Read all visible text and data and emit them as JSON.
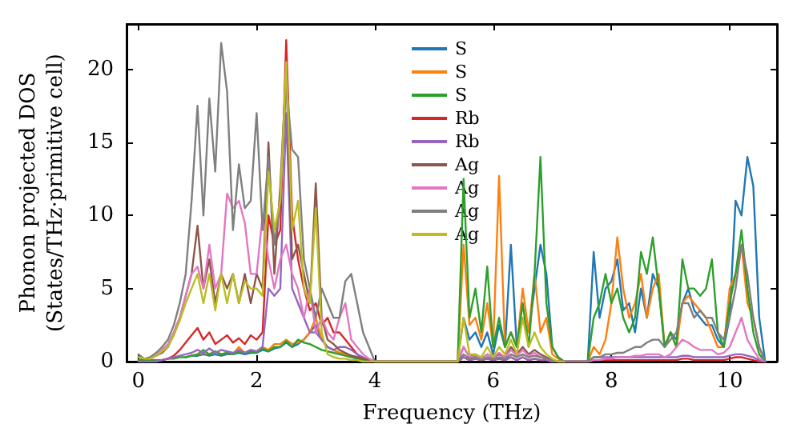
{
  "chart_data": {
    "type": "line",
    "xlabel": "Frequency (THz)",
    "ylabel": "Phonon projected DOS\n(States/THz·primitive cell)",
    "x": [
      0,
      0.1,
      0.2,
      0.3,
      0.4,
      0.5,
      0.6,
      0.7,
      0.8,
      0.9,
      1.0,
      1.1,
      1.2,
      1.3,
      1.4,
      1.5,
      1.6,
      1.7,
      1.8,
      1.9,
      2.0,
      2.1,
      2.2,
      2.3,
      2.4,
      2.5,
      2.6,
      2.7,
      2.8,
      2.9,
      3.0,
      3.1,
      3.2,
      3.3,
      3.4,
      3.5,
      3.6,
      3.7,
      3.8,
      3.9,
      4.0,
      5.4,
      5.5,
      5.6,
      5.7,
      5.8,
      5.9,
      6.0,
      6.1,
      6.2,
      6.3,
      6.4,
      6.5,
      6.6,
      6.7,
      6.8,
      6.9,
      7.0,
      7.1,
      7.2,
      7.6,
      7.7,
      7.8,
      7.9,
      8.0,
      8.1,
      8.2,
      8.3,
      8.4,
      8.5,
      8.6,
      8.7,
      8.8,
      8.9,
      9.0,
      9.1,
      9.2,
      9.3,
      9.4,
      9.5,
      9.6,
      9.7,
      9.8,
      9.9,
      10.0,
      10.1,
      10.2,
      10.3,
      10.4,
      10.5,
      10.6
    ],
    "series": [
      {
        "name": "S",
        "color": "#1f77b4",
        "values": [
          null,
          null,
          null,
          null,
          null,
          null,
          null,
          null,
          0.3,
          0.4,
          0.4,
          0.5,
          0.4,
          0.5,
          0.4,
          0.5,
          0.5,
          0.6,
          0.5,
          0.6,
          0.6,
          0.8,
          0.7,
          0.9,
          1,
          1.3,
          1,
          1.2,
          1.5,
          2,
          2.5,
          1.5,
          1,
          0.8,
          0.6,
          0.5,
          0.4,
          0.3,
          0.2,
          0.1,
          0,
          0,
          3,
          1.5,
          2,
          1,
          2,
          0.5,
          2.5,
          1,
          8,
          1,
          3,
          2,
          5,
          8,
          6,
          1,
          0.3,
          0,
          0,
          7.5,
          3,
          5,
          5.5,
          7,
          3.5,
          4,
          2,
          5,
          3,
          6,
          5,
          1,
          2,
          1.5,
          4,
          5,
          3.5,
          3,
          2.5,
          2.5,
          1.5,
          1,
          3,
          11,
          10,
          14,
          12,
          3,
          0
        ]
      },
      {
        "name": "S",
        "color": "#ff7f0e",
        "values": [
          null,
          null,
          null,
          null,
          null,
          null,
          null,
          null,
          null,
          0.4,
          0.5,
          0.6,
          0.5,
          0.7,
          0.5,
          0.6,
          0.5,
          1,
          0.6,
          0.8,
          0.7,
          1,
          0.8,
          1.2,
          1.2,
          1.5,
          1.2,
          1.3,
          1.5,
          2,
          3,
          1.5,
          1,
          0.8,
          0.6,
          0.5,
          0.4,
          0.3,
          0.2,
          0.1,
          0,
          0,
          8,
          2.5,
          3,
          1.5,
          4,
          1,
          12.7,
          1,
          2,
          1,
          5,
          2,
          6,
          2,
          3,
          0.5,
          0.2,
          0,
          0,
          1,
          0.5,
          1.5,
          4,
          8.5,
          5,
          3,
          4,
          6,
          3,
          5,
          6,
          1,
          2,
          1,
          4,
          4.5,
          4,
          3.5,
          3,
          2,
          1,
          1,
          5,
          6,
          8,
          4,
          3,
          1,
          0
        ]
      },
      {
        "name": "S",
        "color": "#2ca02c",
        "values": [
          0.1,
          0.1,
          0.1,
          0.1,
          0.1,
          0.2,
          0.2,
          0.3,
          0.3,
          0.4,
          0.5,
          0.8,
          0.5,
          0.7,
          0.5,
          0.6,
          0.5,
          0.7,
          0.6,
          0.7,
          0.6,
          0.9,
          0.7,
          1,
          1,
          1.4,
          1,
          1.5,
          1.3,
          1.2,
          1,
          0.8,
          0.7,
          0.6,
          0.5,
          0.4,
          0.3,
          0.2,
          0.1,
          0.1,
          0,
          0,
          12.5,
          3,
          5,
          2,
          6.5,
          1,
          3,
          1,
          2,
          1,
          4,
          1,
          6,
          14,
          4,
          1,
          0.3,
          0,
          0,
          3,
          4,
          6,
          4,
          5,
          3,
          2,
          3,
          7.5,
          6,
          8.5,
          5,
          1,
          2,
          1,
          7,
          5,
          5,
          4.5,
          5,
          7,
          2,
          1,
          4,
          6,
          9,
          5,
          2,
          0.5,
          0
        ]
      },
      {
        "name": "Rb",
        "color": "#d62728",
        "values": [
          null,
          null,
          null,
          null,
          0.1,
          0.2,
          0.4,
          0.8,
          1.3,
          1.8,
          2.3,
          1.5,
          2,
          1.2,
          1.5,
          1.8,
          1.3,
          1.6,
          1.2,
          1.8,
          1.5,
          2,
          10,
          8,
          9,
          22,
          10,
          7,
          5,
          3.5,
          4,
          2.5,
          3,
          2,
          2,
          1.5,
          1,
          0.5,
          0.2,
          0.1,
          0,
          0,
          0.3,
          0.1,
          0.2,
          0.1,
          0.2,
          0.1,
          0.2,
          0.1,
          0.3,
          0.1,
          0.3,
          0.1,
          0.2,
          0.1,
          0.1,
          0,
          0,
          0,
          0,
          0.1,
          0.1,
          0.1,
          0.1,
          0.1,
          0.1,
          0.1,
          0.1,
          0.1,
          0.1,
          0.1,
          0.1,
          0.1,
          0.1,
          0.1,
          0.2,
          0.2,
          0.1,
          0.1,
          0.1,
          0.1,
          0.1,
          0.1,
          0.2,
          0.3,
          0.3,
          0.2,
          0.1,
          0,
          0
        ]
      },
      {
        "name": "Rb",
        "color": "#9467bd",
        "values": [
          0,
          0,
          0,
          0,
          0.1,
          0.2,
          0.3,
          0.4,
          0.5,
          0.6,
          0.8,
          0.6,
          0.9,
          0.6,
          0.8,
          0.7,
          0.6,
          0.8,
          0.6,
          0.8,
          0.7,
          1,
          5,
          4.5,
          5,
          17,
          5,
          4,
          3,
          2,
          2,
          1.5,
          1,
          0.8,
          1,
          1,
          0.8,
          0.5,
          0.3,
          0.1,
          0,
          0,
          0.3,
          0.1,
          0.2,
          0.1,
          0.2,
          0.1,
          0.2,
          0.1,
          0.3,
          0.1,
          0.3,
          0.1,
          0.2,
          0.1,
          0.1,
          0,
          0,
          0,
          0,
          0.3,
          0.3,
          0.3,
          0.3,
          0.3,
          0.3,
          0.3,
          0.3,
          0.3,
          0.3,
          0.3,
          0.3,
          0.3,
          0.3,
          0.3,
          0.4,
          0.4,
          0.3,
          0.3,
          0.3,
          0.3,
          0.3,
          0.3,
          0.4,
          0.5,
          0.5,
          0.4,
          0.3,
          0.1,
          0
        ]
      },
      {
        "name": "Ag",
        "color": "#8c564b",
        "values": [
          0.3,
          0.2,
          0.2,
          0.4,
          0.6,
          1,
          2,
          3,
          4.5,
          6,
          9.3,
          5,
          7,
          4,
          6,
          5,
          6,
          4,
          6,
          4,
          6,
          5,
          15,
          6,
          12,
          20,
          7,
          8,
          6,
          4,
          12.2,
          3,
          1.5,
          1.2,
          0.8,
          0.6,
          0.4,
          0.3,
          0.2,
          0.1,
          0,
          0,
          1,
          0.3,
          0.5,
          0.2,
          0.5,
          0.3,
          0.5,
          0.3,
          1,
          0.5,
          1,
          0.5,
          0.8,
          0.5,
          0.3,
          0.1,
          0,
          0,
          null,
          null,
          null,
          null,
          null,
          null,
          null,
          null,
          null,
          null,
          null,
          null,
          null,
          null,
          null,
          null,
          null,
          null,
          null,
          null,
          null,
          null,
          null,
          null,
          null,
          null,
          null,
          null,
          null,
          null,
          null
        ]
      },
      {
        "name": "Ag",
        "color": "#e377c2",
        "values": [
          null,
          null,
          0.2,
          0.4,
          0.8,
          1.2,
          2,
          3,
          4.5,
          6,
          6.5,
          5,
          8,
          5,
          6,
          11.5,
          10.5,
          11,
          9.5,
          6,
          6,
          10,
          7,
          5,
          7,
          8,
          6,
          5,
          3,
          5,
          2,
          3,
          2,
          1.5,
          3,
          4,
          1.5,
          1,
          0.5,
          0.2,
          0,
          0,
          1,
          0.3,
          0.4,
          0.2,
          0.5,
          0.3,
          0.6,
          0.3,
          0.8,
          0.4,
          0.8,
          0.4,
          0.6,
          0.3,
          0.2,
          0.1,
          0,
          0,
          0,
          0.1,
          0.1,
          0.2,
          0.2,
          0.3,
          0.3,
          0.3,
          0.4,
          0.4,
          0.5,
          0.5,
          0.5,
          0.3,
          0.5,
          1,
          1.5,
          1.3,
          1,
          0.8,
          0.8,
          0.8,
          0.5,
          0.6,
          1,
          2,
          3,
          1.5,
          0.8,
          0.2,
          0
        ]
      },
      {
        "name": "Ag",
        "color": "#7f7f7f",
        "values": [
          0.5,
          0.2,
          0.3,
          0.6,
          1,
          1.5,
          2.5,
          4,
          6,
          11,
          17.5,
          10,
          18,
          13,
          21.8,
          18.5,
          9,
          13.5,
          10.5,
          11,
          17,
          9,
          14,
          8,
          11,
          19,
          14.5,
          14,
          7,
          5,
          3,
          5,
          4,
          3,
          3,
          5.5,
          6,
          4,
          2,
          1,
          0,
          0,
          0.5,
          0.2,
          0.3,
          0.1,
          0.3,
          0.2,
          0.3,
          0.2,
          0.5,
          0.3,
          0.5,
          0.3,
          0.4,
          0.3,
          0.2,
          0.1,
          0,
          0,
          0,
          0.3,
          0.3,
          0.5,
          0.5,
          0.6,
          0.6,
          0.8,
          1,
          1,
          1.3,
          1.5,
          1.5,
          1,
          1.5,
          2,
          4,
          4,
          3,
          3.5,
          3,
          3,
          2,
          1.5,
          3,
          5,
          8,
          6,
          3,
          1,
          0
        ]
      },
      {
        "name": "Ag",
        "color": "#bcbd22",
        "values": [
          0.3,
          0.2,
          0.2,
          0.4,
          0.7,
          1,
          1.8,
          2.8,
          4,
          5,
          6,
          4,
          6,
          3.5,
          6,
          4,
          6,
          4,
          5.5,
          5,
          5,
          4.5,
          13,
          9,
          11,
          20.5,
          9,
          11,
          5,
          4,
          10.5,
          2,
          0.5,
          0.3,
          0.2,
          0.2,
          0.1,
          0.1,
          0,
          0,
          0,
          0,
          3,
          0.5,
          0.5,
          0.3,
          1,
          0.3,
          1,
          0.5,
          1.5,
          0.5,
          3,
          1,
          2,
          1,
          0.5,
          0.2,
          0,
          0,
          null,
          null,
          null,
          null,
          null,
          null,
          null,
          null,
          null,
          null,
          null,
          null,
          null,
          null,
          null,
          null,
          null,
          null,
          null,
          null,
          null,
          null,
          null,
          null,
          null,
          null,
          null,
          null,
          null,
          null,
          null
        ]
      }
    ],
    "xlim": [
      -0.2,
      10.8
    ],
    "ylim": [
      0,
      23.1
    ],
    "xticks": [
      0,
      2,
      4,
      6,
      8,
      10
    ],
    "yticks": [
      0,
      5,
      10,
      15,
      20
    ],
    "grid": false,
    "legend": "top",
    "line_style": "solid"
  }
}
